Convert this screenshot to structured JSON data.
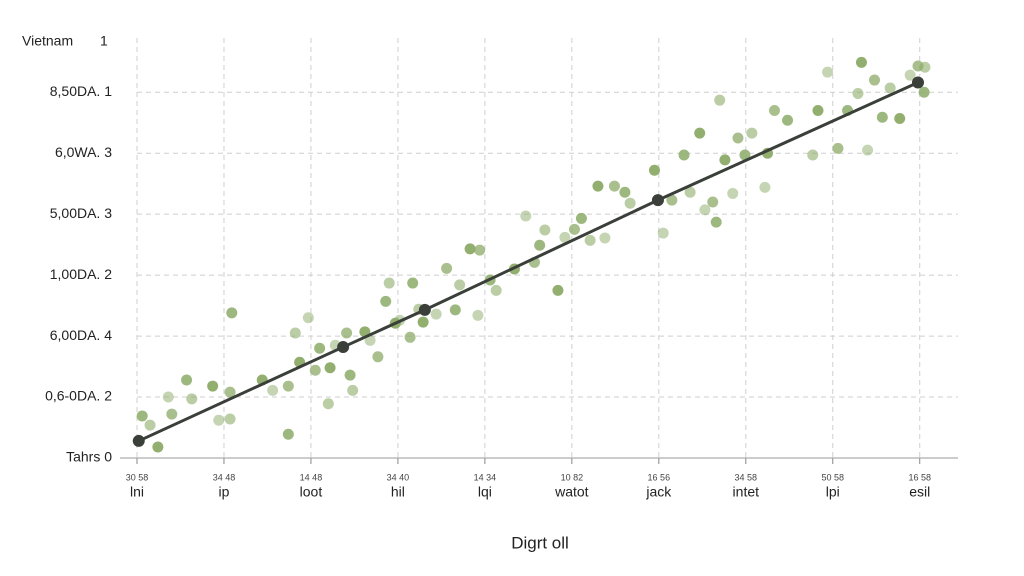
{
  "chart_data": {
    "type": "scatter",
    "y_label": "Vietnam",
    "y_label_note": "1",
    "x_label": "Digrt oll",
    "xlim": [
      0,
      9.44
    ],
    "ylim": [
      0,
      6.89
    ],
    "xticks": [
      {
        "value": 0,
        "label": "lni"
      },
      {
        "value": 1,
        "label": "ip"
      },
      {
        "value": 2,
        "label": "loot"
      },
      {
        "value": 3,
        "label": "hil"
      },
      {
        "value": 4,
        "label": "lqi"
      },
      {
        "value": 5,
        "label": "watot"
      },
      {
        "value": 6,
        "label": "jack"
      },
      {
        "value": 7,
        "label": "intet"
      },
      {
        "value": 8,
        "label": "lpi"
      },
      {
        "value": 9,
        "label": "esil"
      }
    ],
    "xtick_codes": [
      "30 58",
      "34 48",
      "14 48",
      "34 40",
      "14 34",
      "10 82",
      "16 56",
      "34 58",
      "50 58",
      "16 58"
    ],
    "yticks": [
      {
        "value": 0,
        "label": "Tahrs 0"
      },
      {
        "value": 1,
        "label": "0,6-0DA. 2"
      },
      {
        "value": 2,
        "label": "6,00DA. 4"
      },
      {
        "value": 3,
        "label": "1,00DA. 2"
      },
      {
        "value": 4,
        "label": "5,00DA. 3"
      },
      {
        "value": 5,
        "label": "6,0WA. 3"
      },
      {
        "value": 6,
        "label": "8,50DA. 1"
      }
    ],
    "grid": true,
    "series": [
      {
        "type": "scatter",
        "color": "#8cab68",
        "x": [
          0.06,
          0.15,
          0.24,
          0.36,
          0.4,
          0.57,
          0.63,
          0.87,
          0.94,
          1.07,
          1.09,
          1.07,
          1.44,
          1.56,
          1.74,
          1.74,
          1.82,
          1.87,
          1.97,
          2.05,
          2.1,
          2.2,
          2.22,
          2.28,
          2.41,
          2.45,
          2.48,
          2.62,
          2.68,
          2.77,
          2.86,
          2.9,
          2.97,
          3.02,
          3.14,
          3.17,
          3.24,
          3.29,
          3.44,
          3.56,
          3.66,
          3.71,
          3.83,
          3.92,
          3.94,
          4.06,
          4.13,
          4.34,
          4.47,
          4.57,
          4.63,
          4.69,
          4.84,
          4.92,
          5.03,
          5.11,
          5.21,
          5.3,
          5.38,
          5.49,
          5.61,
          5.67,
          5.95,
          6.05,
          6.15,
          6.29,
          6.36,
          6.47,
          6.53,
          6.62,
          6.66,
          6.7,
          6.76,
          6.85,
          6.91,
          6.99,
          7.07,
          7.25,
          7.22,
          7.33,
          7.48,
          7.77,
          7.83,
          7.94,
          8.06,
          8.17,
          8.29,
          8.33,
          8.4,
          8.48,
          8.57,
          8.66,
          8.77,
          8.89,
          8.98,
          9.05,
          9.06
        ],
        "values": [
          0.69,
          0.54,
          0.18,
          1.0,
          0.72,
          1.28,
          0.97,
          1.18,
          0.62,
          1.08,
          2.38,
          0.64,
          1.28,
          1.11,
          1.18,
          0.39,
          2.05,
          1.57,
          2.3,
          1.44,
          1.8,
          0.89,
          1.48,
          1.85,
          2.05,
          1.36,
          1.11,
          2.07,
          1.93,
          1.66,
          2.57,
          2.87,
          2.21,
          2.26,
          1.98,
          2.87,
          2.44,
          2.23,
          2.36,
          3.11,
          2.43,
          2.84,
          3.43,
          2.34,
          3.41,
          2.92,
          2.75,
          3.1,
          3.97,
          3.21,
          3.49,
          3.74,
          2.75,
          3.62,
          3.75,
          3.93,
          3.57,
          4.46,
          3.61,
          4.46,
          4.36,
          4.18,
          4.72,
          3.69,
          4.23,
          4.97,
          4.36,
          5.33,
          4.07,
          4.2,
          3.87,
          5.87,
          4.89,
          4.34,
          5.25,
          4.97,
          5.33,
          5.0,
          4.44,
          5.7,
          5.54,
          4.97,
          5.7,
          6.33,
          5.08,
          5.7,
          5.98,
          6.49,
          5.05,
          6.2,
          5.59,
          6.07,
          5.57,
          6.28,
          6.43,
          6.0,
          6.41
        ]
      },
      {
        "type": "line",
        "color": "#3a3f3a",
        "x": [
          0.02,
          2.37,
          3.31,
          5.99,
          8.98
        ],
        "values": [
          0.28,
          1.82,
          2.43,
          4.23,
          6.16
        ]
      }
    ]
  }
}
